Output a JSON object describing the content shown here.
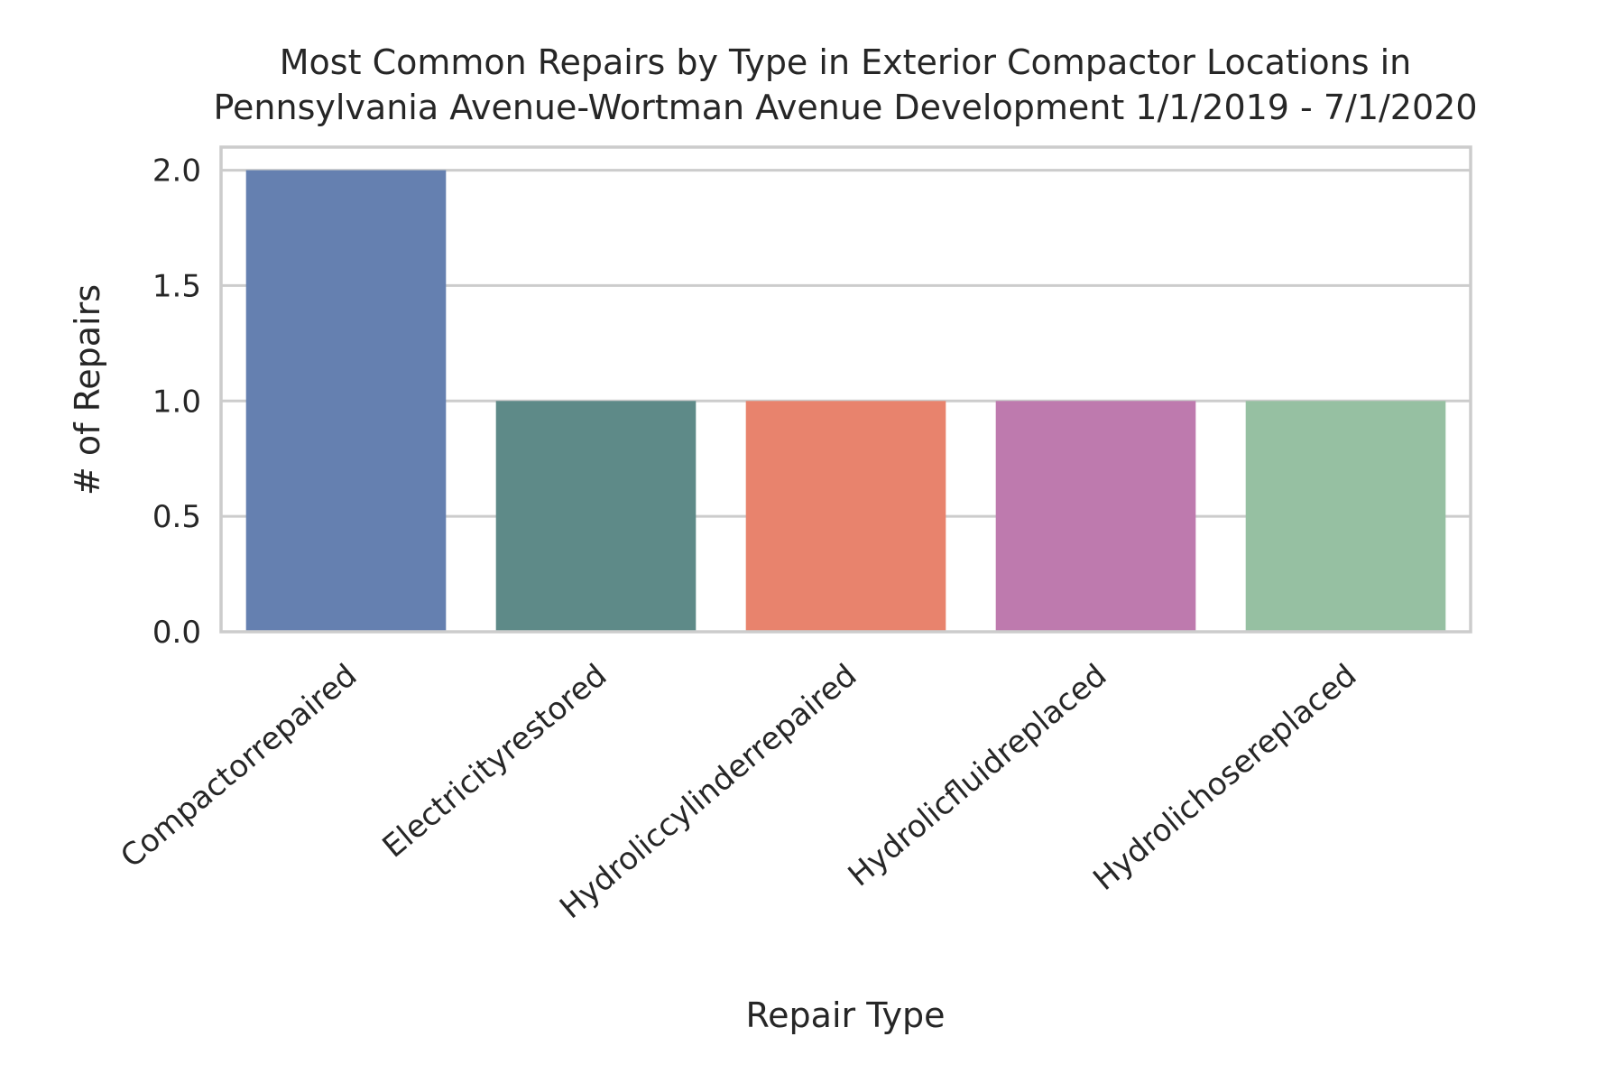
{
  "chart_data": {
    "type": "bar",
    "title_lines": [
      "Most Common Repairs by Type in Exterior Compactor Locations in",
      "Pennsylvania Avenue-Wortman Avenue Development 1/1/2019 - 7/1/2020"
    ],
    "xlabel": "Repair Type",
    "ylabel": "# of Repairs",
    "categories": [
      "Compactorrepaired",
      "Electricityrestored",
      "Hydroliccylinderrepaired",
      "Hydrolicfluidreplaced",
      "Hydrolichosereplaced"
    ],
    "values": [
      2,
      1,
      1,
      1,
      1
    ],
    "colors": [
      "#6580b0",
      "#5e8a88",
      "#e8836d",
      "#be7aae",
      "#96c0a2"
    ],
    "ylim": [
      0,
      2.1
    ],
    "yticks": [
      "0.0",
      "0.5",
      "1.0",
      "1.5",
      "2.0"
    ],
    "ytick_values": [
      0,
      0.5,
      1.0,
      1.5,
      2.0
    ],
    "grid": true,
    "xtick_rotation_deg": 40
  }
}
